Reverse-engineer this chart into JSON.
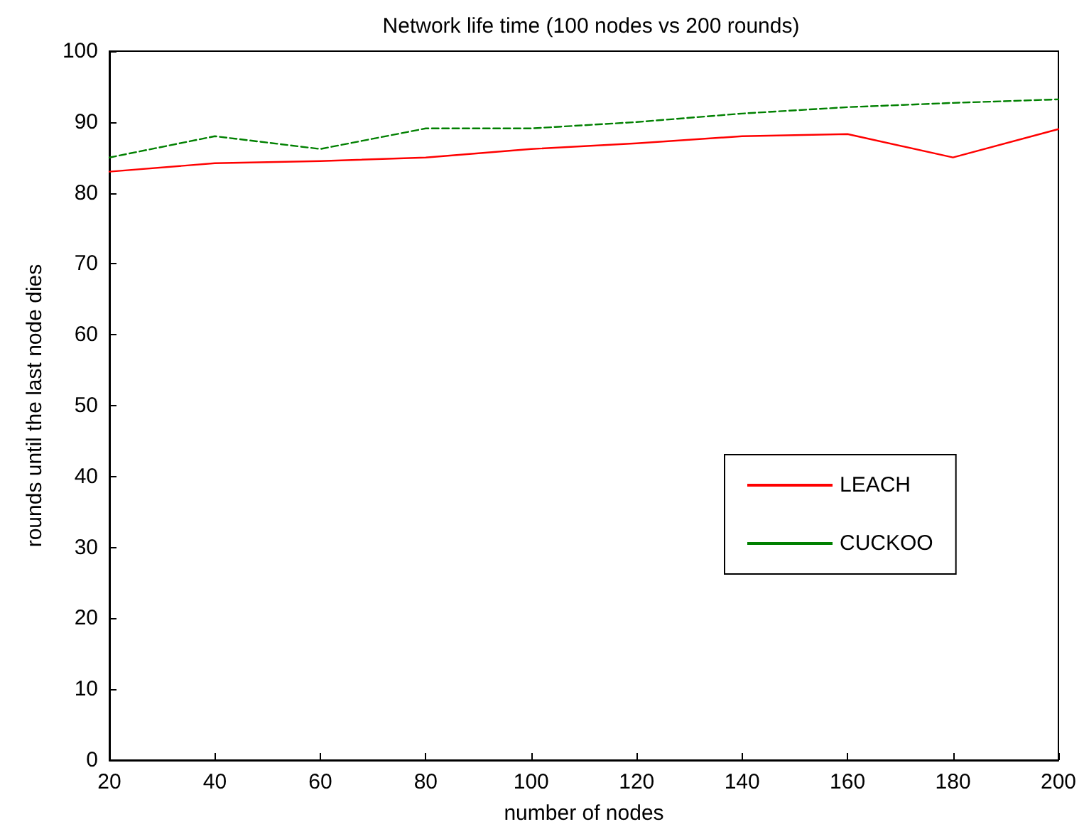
{
  "chart_data": {
    "type": "line",
    "title": "Network life time (100 nodes vs 200 rounds)",
    "xlabel": "number of nodes",
    "ylabel": "rounds until the last node dies",
    "x": [
      20,
      40,
      60,
      80,
      100,
      120,
      140,
      160,
      180,
      200
    ],
    "series": [
      {
        "name": "LEACH",
        "color": "#ff0000",
        "line_style": "solid",
        "values": [
          83,
          84.2,
          84.5,
          85,
          86.2,
          87,
          88,
          88.3,
          85,
          89
        ]
      },
      {
        "name": "CUCKOO",
        "color": "#008000",
        "line_style": "dashed",
        "values": [
          85,
          88,
          86.2,
          89.1,
          89.1,
          90,
          91.2,
          92.1,
          92.7,
          93.2
        ]
      }
    ],
    "xlim": [
      20,
      200
    ],
    "xticks": [
      20,
      40,
      60,
      80,
      100,
      120,
      140,
      160,
      180,
      200
    ],
    "ylim": [
      0,
      100
    ],
    "yticks": [
      0,
      10,
      20,
      30,
      40,
      50,
      60,
      70,
      80,
      90,
      100
    ],
    "grid": false,
    "legend": "right",
    "marker": "none"
  }
}
